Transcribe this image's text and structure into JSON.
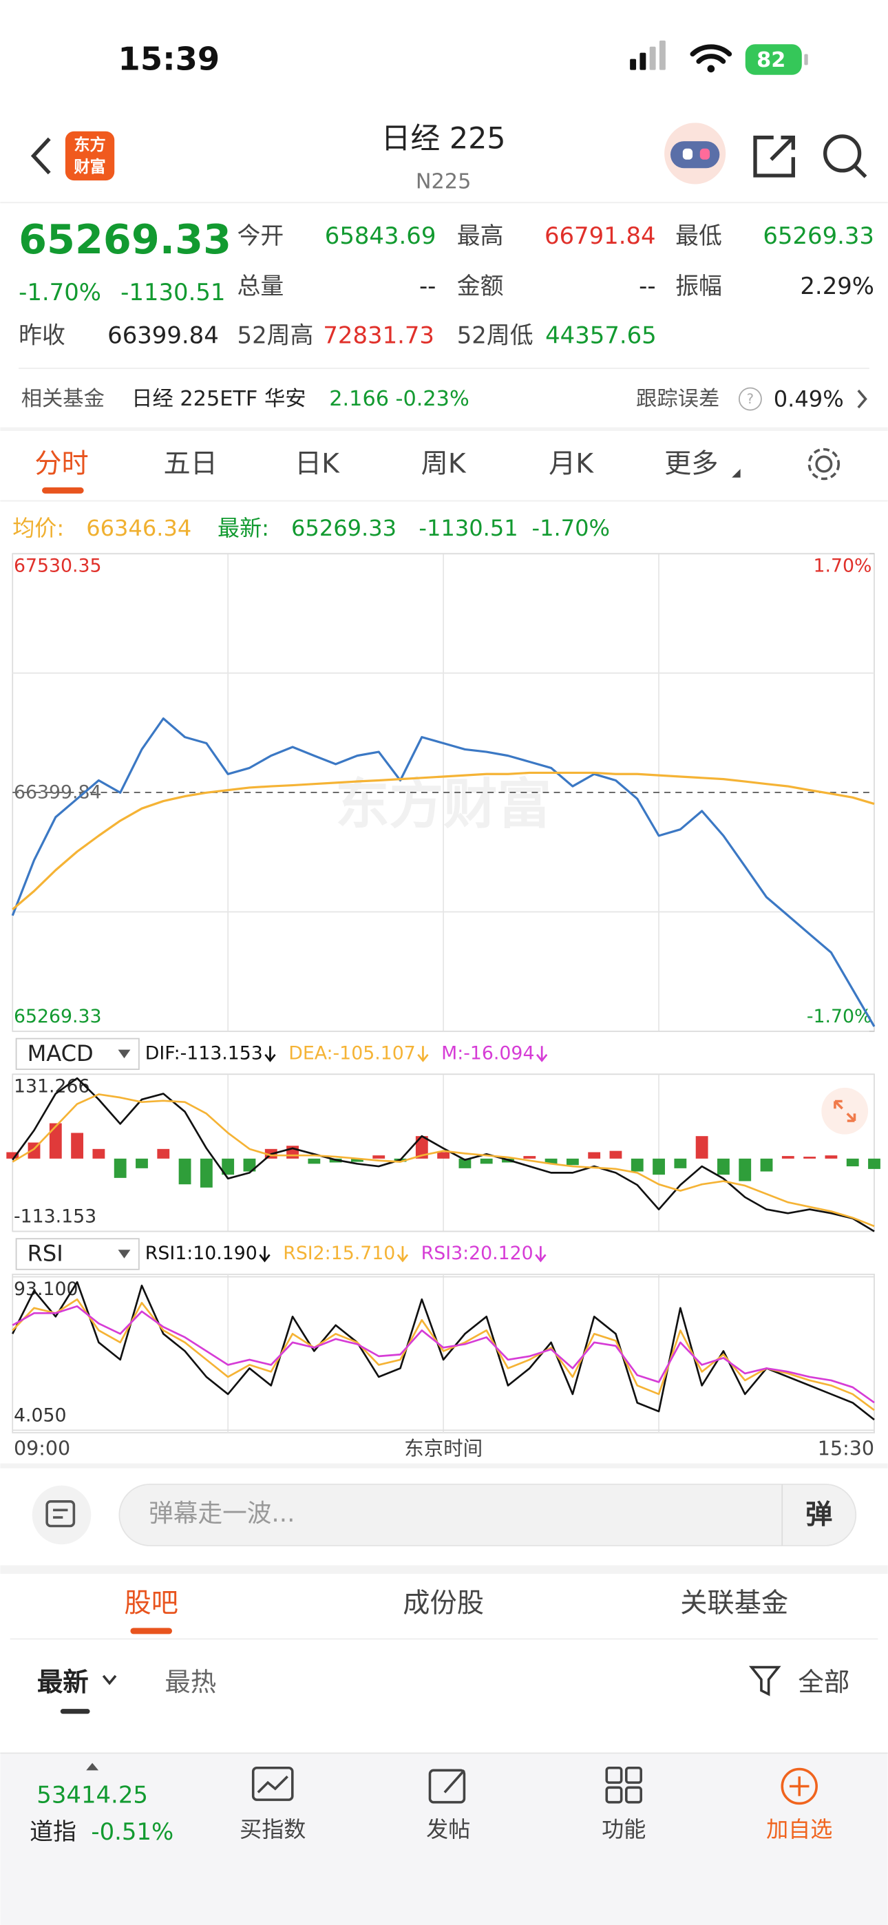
{
  "status_bar": {
    "time": "15:39",
    "battery": "82"
  },
  "header": {
    "logo": [
      "东方",
      "财富"
    ],
    "title": "日经 225",
    "code": "N225"
  },
  "quote": {
    "price": "65269.33",
    "change_pct": "-1.70%",
    "change": "-1130.51",
    "fields": [
      {
        "label": "今开",
        "value": "65843.69"
      },
      {
        "label": "最高",
        "value": "66791.84"
      },
      {
        "label": "最低",
        "value": "65269.33"
      },
      {
        "label": "总量",
        "value": "--"
      },
      {
        "label": "金额",
        "value": "--"
      },
      {
        "label": "振幅",
        "value": "2.29%"
      },
      {
        "label": "昨收",
        "value": "66399.84"
      },
      {
        "label": "52周高",
        "value": "72831.73"
      },
      {
        "label": "52周低",
        "value": "44357.65"
      }
    ]
  },
  "fund": {
    "label": "相关基金",
    "name": "日经 225ETF 华安",
    "price": "2.166",
    "change": "-0.23%",
    "tracking_label": "跟踪误差",
    "tracking": "0.49%"
  },
  "period_tabs": [
    "分时",
    "五日",
    "日K",
    "周K",
    "月K",
    "更多"
  ],
  "summary": {
    "avg_label": "均价:",
    "avg": "66346.34",
    "latest_label": "最新:",
    "latest": "65269.33",
    "change": "-1130.51",
    "pct": "-1.70%"
  },
  "chart_data": [
    {
      "type": "line",
      "watermark": "东方财富",
      "ylim": [
        65269.33,
        67530.35
      ],
      "yticks": [
        67530.35,
        66399.84,
        65269.33
      ],
      "y2lim": [
        -1.7,
        1.7
      ],
      "y2ticks": [
        {
          "value": 1.7,
          "label": "1.70%"
        },
        {
          "value": -1.7,
          "label": "-1.70%"
        }
      ],
      "series": [
        {
          "color": "#3b78c4",
          "values": [
            65817,
            66079,
            66283,
            66370,
            66457,
            66399,
            66604,
            66750,
            66662,
            66633,
            66487,
            66516,
            66574,
            66615,
            66574,
            66534,
            66574,
            66592,
            66457,
            66662,
            66633,
            66604,
            66592,
            66574,
            66545,
            66516,
            66429,
            66487,
            66457,
            66370,
            66195,
            66225,
            66312,
            66195,
            66050,
            65904,
            65817,
            65729,
            65642,
            65467,
            65292
          ]
        },
        {
          "color": "#f5b335",
          "values": [
            65846,
            65933,
            66032,
            66120,
            66195,
            66266,
            66324,
            66359,
            66382,
            66399,
            66411,
            66423,
            66429,
            66434,
            66440,
            66446,
            66452,
            66457,
            66463,
            66469,
            66475,
            66481,
            66487,
            66487,
            66493,
            66493,
            66493,
            66493,
            66487,
            66487,
            66481,
            66475,
            66469,
            66463,
            66452,
            66440,
            66429,
            66411,
            66394,
            66376,
            66346
          ]
        }
      ]
    },
    {
      "type": "macd",
      "indicator": "MACD",
      "ylim": [
        -113.153,
        131.266
      ],
      "yticks": [
        131.266,
        -113.153
      ],
      "series": [
        {
          "name": "DIF:-113.153",
          "color": "#111111",
          "values": [
            -2,
            44,
            101,
            125,
            92,
            54,
            92,
            101,
            73,
            16,
            -31,
            -22,
            7,
            16,
            7,
            -2,
            -8,
            -12,
            -2,
            35,
            16,
            -2,
            7,
            -2,
            -12,
            -22,
            -22,
            -12,
            -22,
            -41,
            -79,
            -41,
            -12,
            -31,
            -60,
            -79,
            -85,
            -79,
            -85,
            -93,
            -113.153
          ]
        },
        {
          "name": "DEA:-105.107",
          "color": "#f5b335",
          "values": [
            -5,
            15,
            50,
            85,
            100,
            95,
            88,
            90,
            88,
            70,
            40,
            15,
            5,
            5,
            5,
            3,
            0,
            -3,
            -5,
            5,
            12,
            8,
            5,
            2,
            -3,
            -8,
            -12,
            -14,
            -16,
            -22,
            -40,
            -50,
            -40,
            -35,
            -42,
            -55,
            -68,
            -75,
            -82,
            -92,
            -105.107
          ]
        },
        {
          "name": "M:-16.094",
          "type": "bar",
          "color": "#d63cd6",
          "up_color": "#e03a3a",
          "down_color": "#2f9e3a",
          "values": [
            10,
            25,
            55,
            40,
            15,
            -30,
            -15,
            15,
            -40,
            -45,
            -25,
            -20,
            15,
            20,
            -8,
            -6,
            -5,
            5,
            -5,
            35,
            10,
            -15,
            -8,
            -6,
            4,
            -8,
            -10,
            10,
            12,
            -20,
            -25,
            -15,
            35,
            -25,
            -35,
            -20,
            4,
            3,
            5,
            -12,
            -16.094
          ]
        }
      ]
    },
    {
      "type": "line",
      "indicator": "RSI",
      "xlabel": "东京时间",
      "categories": [
        "09:00",
        null,
        null,
        null,
        null,
        null,
        null,
        null,
        null,
        null,
        null,
        null,
        null,
        null,
        null,
        null,
        null,
        null,
        null,
        null,
        null,
        null,
        null,
        null,
        null,
        null,
        null,
        null,
        null,
        null,
        null,
        null,
        null,
        null,
        null,
        null,
        null,
        null,
        null,
        null,
        "15:30"
      ],
      "ylim": [
        4.05,
        93.1
      ],
      "yticks": [
        {
          "value": 93.1,
          "label": "93.100"
        },
        {
          "value": 4.05,
          "label": "4.050"
        }
      ],
      "series": [
        {
          "name": "RSI1:10.190",
          "color": "#111111",
          "values": [
            60,
            85,
            70,
            90,
            55,
            45,
            88,
            60,
            50,
            35,
            25,
            40,
            30,
            70,
            50,
            65,
            55,
            35,
            40,
            80,
            45,
            60,
            70,
            30,
            40,
            55,
            25,
            70,
            60,
            20,
            15,
            75,
            30,
            50,
            25,
            40,
            35,
            30,
            25,
            20,
            10.19
          ]
        },
        {
          "name": "RSI2:15.710",
          "color": "#f5b335",
          "values": [
            62,
            75,
            72,
            80,
            62,
            55,
            78,
            62,
            55,
            45,
            35,
            42,
            38,
            60,
            52,
            60,
            55,
            42,
            45,
            68,
            50,
            55,
            62,
            40,
            45,
            52,
            35,
            60,
            56,
            30,
            25,
            62,
            38,
            48,
            33,
            40,
            37,
            33,
            30,
            25,
            15.71
          ]
        },
        {
          "name": "RSI3:20.120",
          "color": "#d63cd6",
          "values": [
            65,
            72,
            72,
            76,
            66,
            60,
            73,
            64,
            58,
            50,
            42,
            45,
            42,
            55,
            52,
            57,
            54,
            47,
            48,
            62,
            52,
            54,
            58,
            45,
            47,
            51,
            40,
            55,
            53,
            36,
            32,
            55,
            42,
            46,
            37,
            40,
            38,
            35,
            33,
            29,
            20.12
          ]
        }
      ]
    }
  ],
  "comment": {
    "placeholder": "弹幕走一波...",
    "button": "弹"
  },
  "section_tabs": [
    "股吧",
    "成份股",
    "关联基金"
  ],
  "sort": {
    "options": [
      "最新",
      "最热"
    ],
    "filter": "全部"
  },
  "footer": {
    "index_value": "53414.25",
    "index_name": "道指",
    "index_change": "-0.51%",
    "nav": [
      "买指数",
      "发帖",
      "功能",
      "加自选"
    ]
  }
}
